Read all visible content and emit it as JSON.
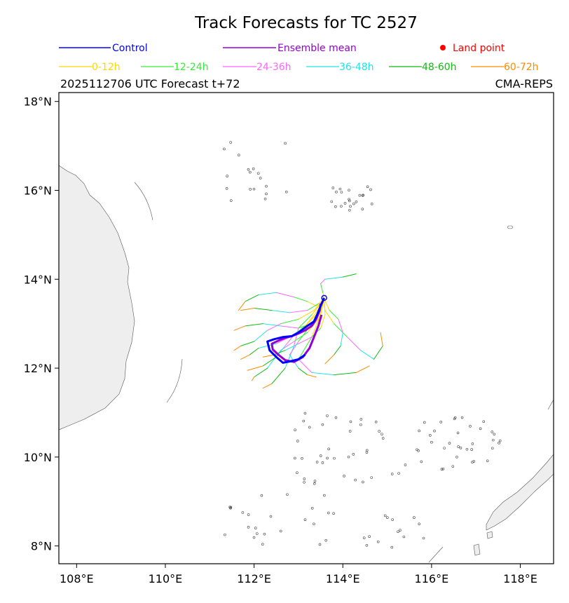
{
  "colors": {
    "control": "#0000ff",
    "mean": "#9400d3",
    "land_point": "#ff0000",
    "land_fill": "#eeeeee",
    "coast": "#555555"
  },
  "chart_data": {
    "type": "line",
    "title": "Track Forecasts for TC 2527",
    "subtitle_left": "2025112706 UTC Forecast t+72",
    "subtitle_right": "CMA-REPS",
    "legend": {
      "row1": [
        {
          "label": "Control",
          "color": "#0000ff",
          "kind": "line"
        },
        {
          "label": "Ensemble mean",
          "color": "#9400d3",
          "kind": "line"
        },
        {
          "label": "Land point",
          "color": "#ff0000",
          "kind": "dot"
        }
      ],
      "row2": [
        {
          "label": "0-12h",
          "color": "#ffd700"
        },
        {
          "label": "12-24h",
          "color": "#33ee33"
        },
        {
          "label": "24-36h",
          "color": "#ff66ff"
        },
        {
          "label": "36-48h",
          "color": "#22e5e5"
        },
        {
          "label": "48-60h",
          "color": "#11bb11"
        },
        {
          "label": "60-72h",
          "color": "#ff8c00"
        }
      ]
    },
    "xlim": [
      107.6,
      118.75
    ],
    "ylim": [
      7.6,
      18.2
    ],
    "xticks": [
      108,
      110,
      112,
      114,
      116,
      118
    ],
    "xtick_labels": [
      "108°E",
      "110°E",
      "112°E",
      "114°E",
      "116°E",
      "118°E"
    ],
    "yticks": [
      8,
      10,
      12,
      14,
      16,
      18
    ],
    "ytick_labels": [
      "8°N",
      "10°N",
      "12°N",
      "14°N",
      "16°N",
      "18°N"
    ],
    "control_track": [
      [
        113.58,
        13.58
      ],
      [
        113.5,
        13.4
      ],
      [
        113.42,
        13.2
      ],
      [
        113.35,
        13.05
      ],
      [
        113.2,
        12.95
      ],
      [
        113.0,
        12.8
      ],
      [
        112.85,
        12.72
      ],
      [
        112.65,
        12.7
      ],
      [
        112.45,
        12.65
      ],
      [
        112.3,
        12.6
      ],
      [
        112.35,
        12.4
      ],
      [
        112.5,
        12.25
      ],
      [
        112.65,
        12.12
      ],
      [
        112.8,
        12.15
      ],
      [
        113.0,
        12.2
      ],
      [
        113.15,
        12.3
      ]
    ],
    "mean_track": [
      [
        113.5,
        13.45
      ],
      [
        113.48,
        13.3
      ],
      [
        113.4,
        13.1
      ],
      [
        113.3,
        12.95
      ],
      [
        113.15,
        12.85
      ],
      [
        113.0,
        12.78
      ],
      [
        112.85,
        12.72
      ],
      [
        112.7,
        12.68
      ],
      [
        112.55,
        12.62
      ],
      [
        112.4,
        12.55
      ],
      [
        112.42,
        12.42
      ],
      [
        112.55,
        12.3
      ],
      [
        112.7,
        12.18
      ],
      [
        112.9,
        12.14
      ],
      [
        113.1,
        12.25
      ],
      [
        113.25,
        12.45
      ],
      [
        113.35,
        12.7
      ],
      [
        113.45,
        12.95
      ],
      [
        113.52,
        13.2
      ]
    ],
    "ensemble_members": [
      [
        [
          113.58,
          13.55
        ],
        [
          113.4,
          13.2
        ],
        [
          113.1,
          12.9
        ],
        [
          112.8,
          12.7
        ],
        [
          112.5,
          12.55
        ],
        [
          112.1,
          12.45
        ],
        [
          111.9,
          12.3
        ],
        [
          111.7,
          12.2
        ]
      ],
      [
        [
          113.58,
          13.55
        ],
        [
          113.45,
          13.1
        ],
        [
          113.2,
          12.8
        ],
        [
          112.9,
          12.6
        ],
        [
          112.6,
          12.4
        ],
        [
          112.3,
          12.0
        ],
        [
          112.0,
          11.8
        ],
        [
          111.95,
          11.72
        ]
      ],
      [
        [
          113.58,
          13.55
        ],
        [
          113.5,
          13.3
        ],
        [
          113.3,
          13.0
        ],
        [
          113.0,
          12.9
        ],
        [
          112.6,
          12.95
        ],
        [
          112.2,
          13.0
        ],
        [
          111.8,
          12.95
        ],
        [
          111.55,
          12.85
        ]
      ],
      [
        [
          113.58,
          13.55
        ],
        [
          113.6,
          13.3
        ],
        [
          113.8,
          13.0
        ],
        [
          114.1,
          12.7
        ],
        [
          114.4,
          12.4
        ],
        [
          114.7,
          12.2
        ],
        [
          114.9,
          12.5
        ],
        [
          114.85,
          12.8
        ]
      ],
      [
        [
          113.58,
          13.55
        ],
        [
          113.4,
          13.4
        ],
        [
          113.2,
          13.5
        ],
        [
          112.9,
          13.6
        ],
        [
          112.5,
          13.7
        ],
        [
          112.1,
          13.65
        ],
        [
          111.8,
          13.5
        ],
        [
          111.65,
          13.3
        ]
      ],
      [
        [
          113.58,
          13.55
        ],
        [
          113.55,
          13.7
        ],
        [
          113.5,
          13.9
        ],
        [
          113.6,
          14.0
        ],
        [
          114.0,
          14.05
        ],
        [
          114.3,
          14.12
        ]
      ],
      [
        [
          113.58,
          13.55
        ],
        [
          113.3,
          13.2
        ],
        [
          113.0,
          12.9
        ],
        [
          112.9,
          12.5
        ],
        [
          112.7,
          12.0
        ],
        [
          112.4,
          11.65
        ],
        [
          112.2,
          11.55
        ]
      ],
      [
        [
          113.58,
          13.55
        ],
        [
          113.5,
          13.2
        ],
        [
          113.3,
          12.7
        ],
        [
          113.0,
          12.2
        ],
        [
          113.3,
          11.9
        ],
        [
          113.8,
          11.85
        ],
        [
          114.3,
          11.9
        ],
        [
          114.6,
          12.05
        ]
      ],
      [
        [
          113.58,
          13.55
        ],
        [
          113.35,
          13.3
        ],
        [
          113.0,
          13.1
        ],
        [
          112.6,
          13.0
        ],
        [
          112.3,
          12.85
        ],
        [
          112.0,
          12.6
        ],
        [
          111.7,
          12.5
        ],
        [
          111.55,
          12.4
        ]
      ],
      [
        [
          113.58,
          13.55
        ],
        [
          113.7,
          13.3
        ],
        [
          113.9,
          13.1
        ],
        [
          114.0,
          12.8
        ],
        [
          113.95,
          12.5
        ],
        [
          113.8,
          12.3
        ],
        [
          113.6,
          12.1
        ]
      ],
      [
        [
          113.58,
          13.55
        ],
        [
          113.4,
          13.25
        ],
        [
          113.15,
          12.95
        ],
        [
          112.9,
          12.75
        ],
        [
          112.7,
          12.5
        ],
        [
          112.5,
          12.25
        ],
        [
          112.2,
          12.05
        ],
        [
          111.85,
          11.95
        ]
      ],
      [
        [
          113.58,
          13.55
        ],
        [
          113.3,
          13.0
        ],
        [
          113.0,
          12.6
        ],
        [
          112.8,
          12.3
        ],
        [
          113.0,
          12.0
        ],
        [
          113.2,
          11.85
        ],
        [
          113.4,
          11.8
        ]
      ],
      [
        [
          113.58,
          13.55
        ],
        [
          113.45,
          13.45
        ],
        [
          113.2,
          13.3
        ],
        [
          112.8,
          13.25
        ],
        [
          112.4,
          13.3
        ],
        [
          112.0,
          13.35
        ],
        [
          111.7,
          13.3
        ]
      ],
      [
        [
          113.58,
          13.55
        ],
        [
          113.6,
          13.2
        ],
        [
          113.5,
          12.9
        ],
        [
          113.3,
          12.7
        ],
        [
          113.0,
          12.55
        ],
        [
          112.7,
          12.4
        ],
        [
          112.45,
          12.3
        ],
        [
          112.2,
          12.25
        ]
      ]
    ],
    "land_points": []
  }
}
